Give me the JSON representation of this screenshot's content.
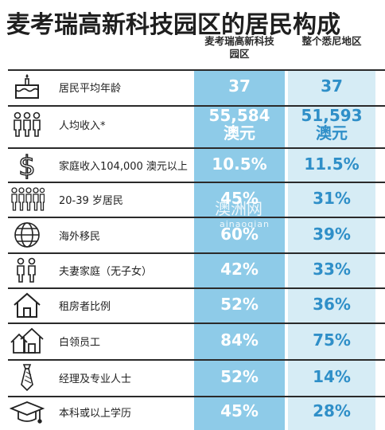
{
  "title": "麦考瑞高新科技园区的居民构成",
  "columns": {
    "a_line1": "麦考瑞高新科技",
    "a_line2": "园区",
    "b": "整个悉尼地区"
  },
  "watermark": {
    "cn": "澳洲网",
    "en": "ainaoqian"
  },
  "chart_data": {
    "type": "table",
    "title": "麦考瑞高新科技园区的居民构成",
    "columns": [
      "麦考瑞高新科技园区",
      "整个悉尼地区"
    ],
    "rows": [
      {
        "icon": "birthday-cake-icon",
        "label": "居民平均年龄",
        "a": "37",
        "b": "37"
      },
      {
        "icon": "people-icon",
        "label": "人均收入*",
        "a": "55,584 澳元",
        "b": "51,593 澳元"
      },
      {
        "icon": "dollar-icon",
        "label": "家庭收入104,000 澳元以上",
        "a": "10.5%",
        "b": "11.5%"
      },
      {
        "icon": "group-icon",
        "label": "20-39 岁居民",
        "a": "45%",
        "b": "31%"
      },
      {
        "icon": "globe-icon",
        "label": "海外移民",
        "a": "60%",
        "b": "39%"
      },
      {
        "icon": "couple-icon",
        "label": "夫妻家庭（无子女）",
        "a": "42%",
        "b": "33%"
      },
      {
        "icon": "house-icon",
        "label": "租房者比例",
        "a": "52%",
        "b": "36%"
      },
      {
        "icon": "houses-icon",
        "label": "白领员工",
        "a": "84%",
        "b": "75%"
      },
      {
        "icon": "necktie-icon",
        "label": "经理及专业人士",
        "a": "52%",
        "b": "14%"
      },
      {
        "icon": "graduation-cap-icon",
        "label": "本科或以上学历",
        "a": "45%",
        "b": "28%"
      }
    ]
  }
}
